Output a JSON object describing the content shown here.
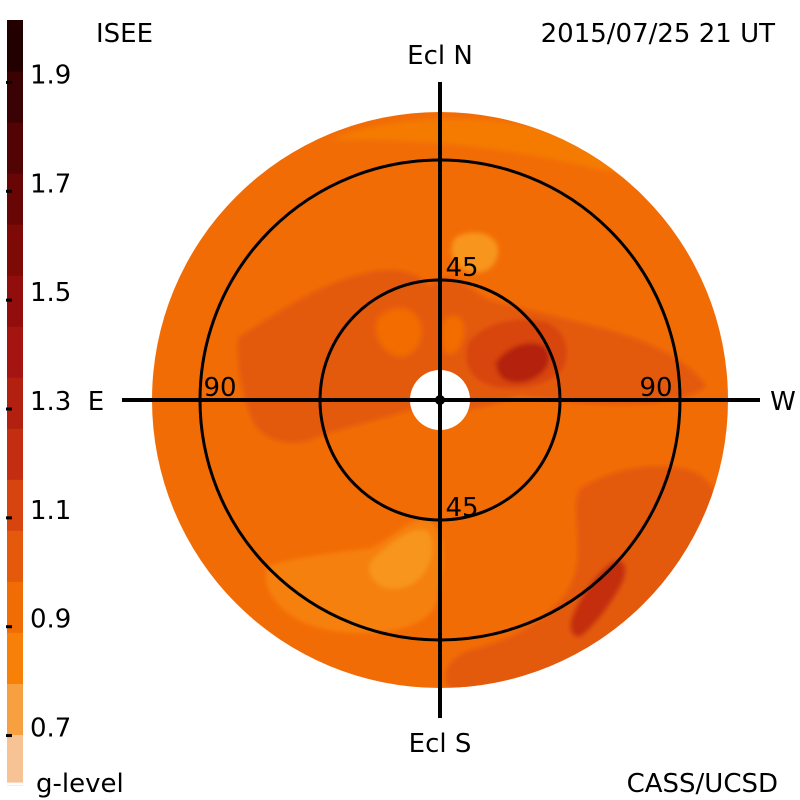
{
  "header": {
    "org_label": "ISEE",
    "timestamp": "2015/07/25 21 UT"
  },
  "footer": {
    "colorbar_label": "g-level",
    "credit": "CASS/UCSD"
  },
  "axes": {
    "north": "Ecl N",
    "south": "Ecl S",
    "east": "E",
    "west": "W",
    "ring_45_top": "45",
    "ring_45_bottom": "45",
    "ring_90_left": "90",
    "ring_90_right": "90"
  },
  "colorbar": {
    "tick_labels": [
      "1.9",
      "1.7",
      "1.5",
      "1.3",
      "1.1",
      "0.9",
      "0.7"
    ],
    "range": [
      0.6,
      2.0
    ],
    "band_step": 0.1,
    "band_colors": [
      "#f9dcc4",
      "#f8c394",
      "#f6a040",
      "#f68008",
      "#f26c06",
      "#e45a0a",
      "#d84410",
      "#c42e10",
      "#b42010",
      "#a41410",
      "#920e0c",
      "#7e0a08",
      "#680606",
      "#520404",
      "#3a0202",
      "#220000"
    ]
  },
  "map": {
    "background_color": "#f26c06",
    "ring_color": "#000000",
    "elongation_rings_deg": [
      45,
      90
    ]
  }
}
